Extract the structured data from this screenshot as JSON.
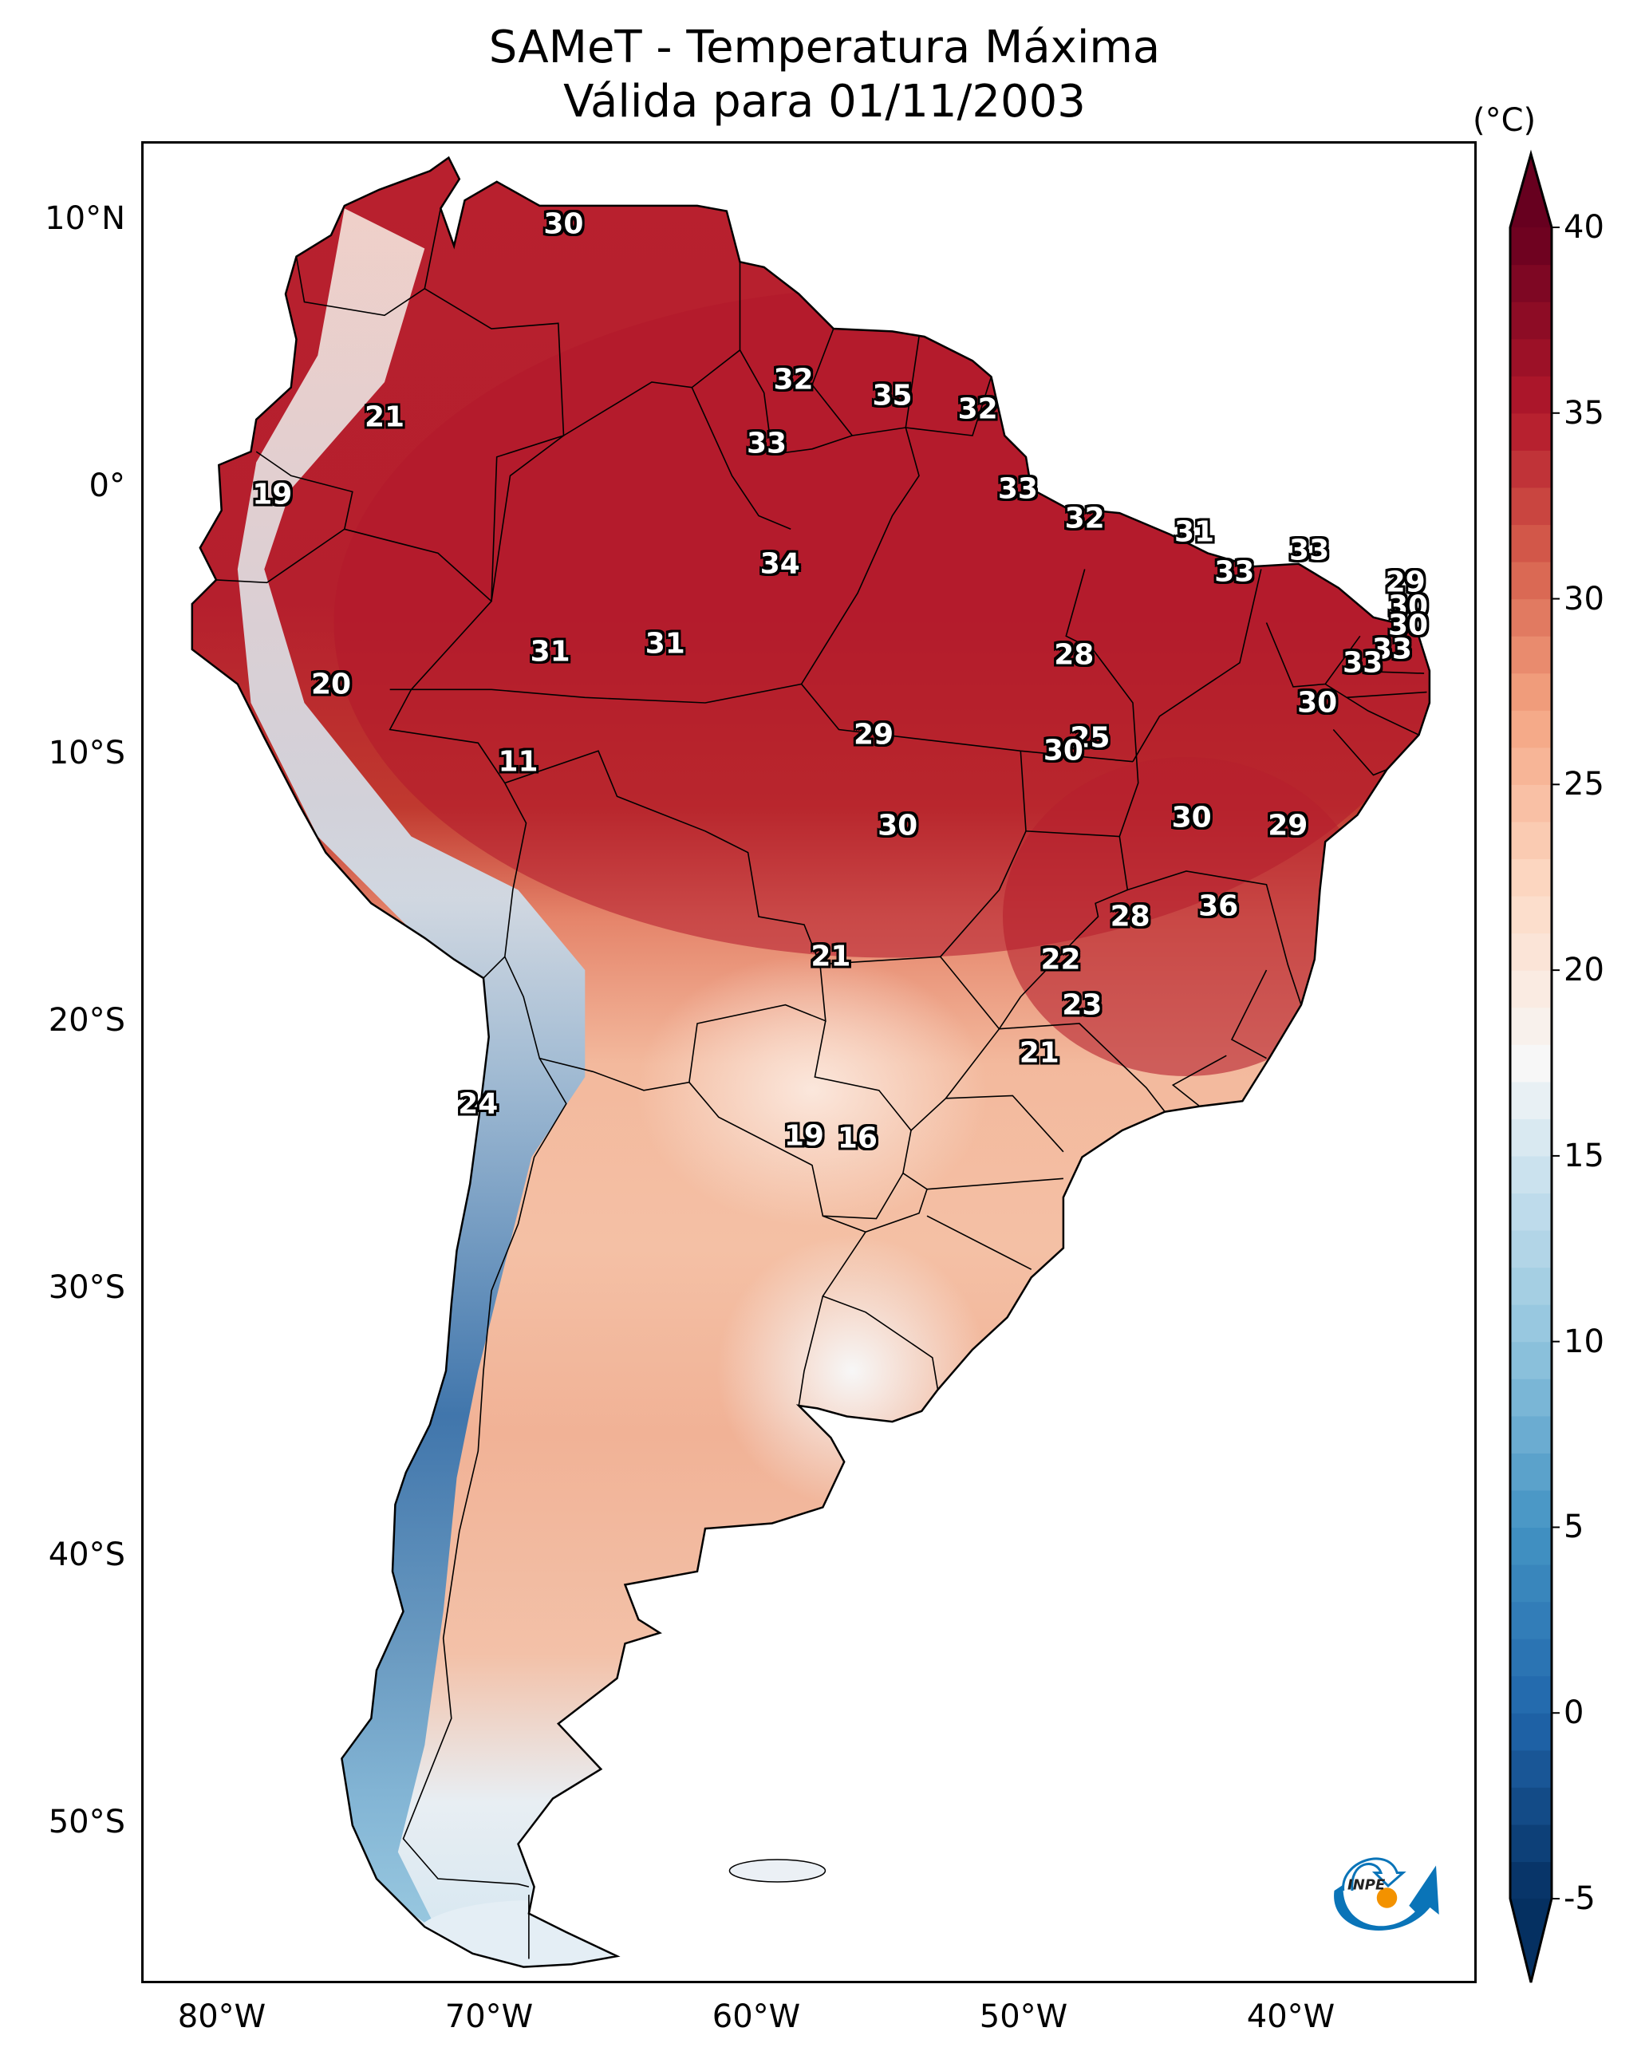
{
  "title": {
    "line1": "SAMeT - Temperatura Máxima",
    "line2": "Válida para 01/11/2003"
  },
  "map": {
    "projection": "PlateCarree",
    "extent": {
      "lon_min": -83,
      "lon_max": -33,
      "lat_min": -56,
      "lat_max": 12.9
    },
    "lat_ticks": [
      {
        "value": 10,
        "label": "10°N"
      },
      {
        "value": 0,
        "label": "0°"
      },
      {
        "value": -10,
        "label": "10°S"
      },
      {
        "value": -20,
        "label": "20°S"
      },
      {
        "value": -30,
        "label": "30°S"
      },
      {
        "value": -40,
        "label": "40°S"
      },
      {
        "value": -50,
        "label": "50°S"
      }
    ],
    "lon_ticks": [
      {
        "value": -80,
        "label": "80°W"
      },
      {
        "value": -70,
        "label": "70°W"
      },
      {
        "value": -60,
        "label": "60°W"
      },
      {
        "value": -50,
        "label": "50°W"
      },
      {
        "value": -40,
        "label": "40°W"
      }
    ],
    "value_labels": [
      {
        "lon": -67.3,
        "lat": 9.9,
        "text": "30"
      },
      {
        "lon": -58.7,
        "lat": 4.1,
        "text": "32"
      },
      {
        "lon": -55.0,
        "lat": 3.5,
        "text": "35"
      },
      {
        "lon": -51.8,
        "lat": 3.0,
        "text": "32"
      },
      {
        "lon": -74.0,
        "lat": 2.7,
        "text": "21"
      },
      {
        "lon": -59.7,
        "lat": 1.7,
        "text": "33"
      },
      {
        "lon": -78.2,
        "lat": -0.2,
        "text": "19"
      },
      {
        "lon": -50.3,
        "lat": 0.0,
        "text": "33"
      },
      {
        "lon": -47.8,
        "lat": -1.1,
        "text": "32"
      },
      {
        "lon": -59.2,
        "lat": -2.8,
        "text": "34"
      },
      {
        "lon": -43.7,
        "lat": -1.6,
        "text": "31"
      },
      {
        "lon": -39.4,
        "lat": -2.3,
        "text": "33"
      },
      {
        "lon": -42.2,
        "lat": -3.1,
        "text": "33"
      },
      {
        "lon": -35.8,
        "lat": -3.5,
        "text": "29"
      },
      {
        "lon": -35.7,
        "lat": -4.4,
        "text": "30"
      },
      {
        "lon": -35.7,
        "lat": -5.1,
        "text": "30"
      },
      {
        "lon": -63.5,
        "lat": -5.8,
        "text": "31"
      },
      {
        "lon": -67.8,
        "lat": -6.1,
        "text": "31"
      },
      {
        "lon": -36.3,
        "lat": -6.0,
        "text": "33"
      },
      {
        "lon": -37.4,
        "lat": -6.5,
        "text": "33"
      },
      {
        "lon": -48.2,
        "lat": -6.2,
        "text": "28"
      },
      {
        "lon": -39.1,
        "lat": -8.0,
        "text": "30"
      },
      {
        "lon": -76.0,
        "lat": -7.3,
        "text": "20"
      },
      {
        "lon": -55.7,
        "lat": -9.2,
        "text": "29"
      },
      {
        "lon": -47.6,
        "lat": -9.3,
        "text": "25"
      },
      {
        "lon": -48.6,
        "lat": -9.8,
        "text": "30"
      },
      {
        "lon": -69.0,
        "lat": -10.2,
        "text": "11"
      },
      {
        "lon": -54.8,
        "lat": -12.6,
        "text": "30"
      },
      {
        "lon": -43.8,
        "lat": -12.3,
        "text": "30"
      },
      {
        "lon": -40.2,
        "lat": -12.6,
        "text": "29"
      },
      {
        "lon": -42.8,
        "lat": -15.6,
        "text": "36"
      },
      {
        "lon": -46.1,
        "lat": -16.0,
        "text": "28"
      },
      {
        "lon": -57.3,
        "lat": -17.5,
        "text": "21"
      },
      {
        "lon": -48.7,
        "lat": -17.6,
        "text": "22"
      },
      {
        "lon": -47.9,
        "lat": -19.3,
        "text": "23"
      },
      {
        "lon": -49.5,
        "lat": -21.1,
        "text": "21"
      },
      {
        "lon": -70.5,
        "lat": -23.0,
        "text": "24"
      },
      {
        "lon": -58.3,
        "lat": -24.2,
        "text": "19"
      },
      {
        "lon": -56.3,
        "lat": -24.3,
        "text": "16"
      }
    ]
  },
  "colorbar": {
    "unit": "(°C)",
    "vmin": -5,
    "vmax": 40,
    "extend": "both",
    "colormap": "RdBu_r",
    "ticks": [
      {
        "value": 40,
        "label": "40"
      },
      {
        "value": 35,
        "label": "35"
      },
      {
        "value": 30,
        "label": "30"
      },
      {
        "value": 25,
        "label": "25"
      },
      {
        "value": 20,
        "label": "20"
      },
      {
        "value": 15,
        "label": "15"
      },
      {
        "value": 10,
        "label": "10"
      },
      {
        "value": 5,
        "label": "5"
      },
      {
        "value": 0,
        "label": "0"
      },
      {
        "value": -5,
        "label": "-5"
      }
    ],
    "stops": [
      {
        "value": -5,
        "color": "#053061"
      },
      {
        "value": 0,
        "color": "#2166ac"
      },
      {
        "value": 5,
        "color": "#4393c3"
      },
      {
        "value": 10,
        "color": "#92c5de"
      },
      {
        "value": 15,
        "color": "#d1e5f0"
      },
      {
        "value": 17.5,
        "color": "#f7f7f7"
      },
      {
        "value": 22,
        "color": "#fddbc7"
      },
      {
        "value": 27,
        "color": "#f4a582"
      },
      {
        "value": 31,
        "color": "#d6604d"
      },
      {
        "value": 35,
        "color": "#b2182b"
      },
      {
        "value": 40,
        "color": "#67001f"
      }
    ]
  },
  "logo": {
    "text": "INPE",
    "blue": "#0a74b8",
    "orange": "#f39200"
  }
}
